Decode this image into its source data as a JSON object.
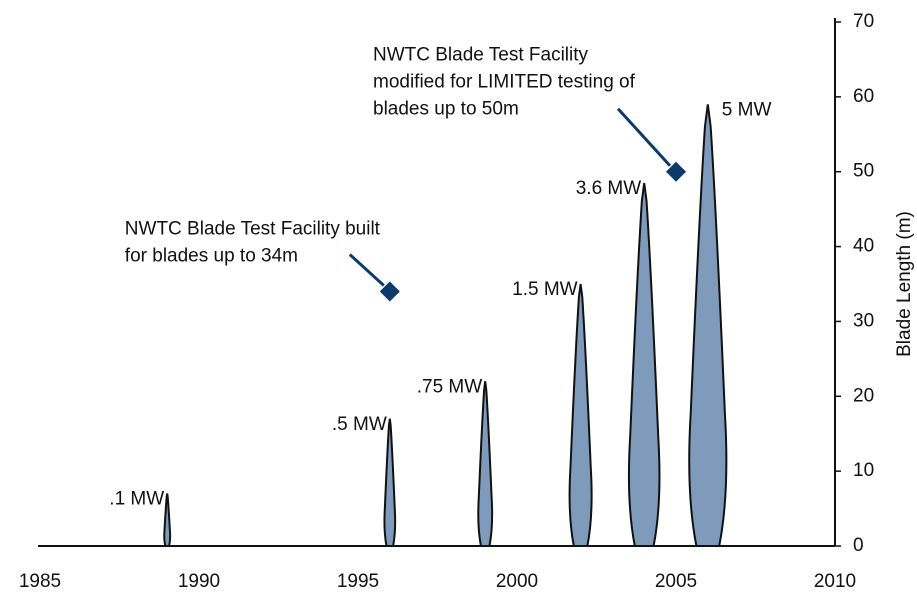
{
  "chart_data": {
    "type": "blade",
    "y_label": "Blade Length (m)",
    "x": [
      1989,
      1996,
      1999,
      2002,
      2004,
      2006
    ],
    "values": [
      7,
      17,
      22,
      35,
      48.5,
      59
    ],
    "labels": [
      ".1 MW",
      ".5 MW",
      ".75 MW",
      "1.5 MW",
      "3.6 MW",
      "5 MW"
    ],
    "color": "#7f9bbb",
    "annotations": [
      {
        "text": [
          "NWTC Blade Test Facility built",
          "for blades up to 34m"
        ],
        "x": 1996,
        "y": 34
      },
      {
        "text": [
          "NWTC Blade Test Facility",
          "modified for LIMITED testing of",
          "blades up to 50m"
        ],
        "x": 2005,
        "y": 50
      }
    ],
    "marker_color": "#0b3a6b",
    "xlim": [
      1985,
      2010
    ],
    "xticks": [
      1985,
      1990,
      1995,
      2000,
      2005,
      2010
    ],
    "ylim": [
      0,
      70
    ],
    "yticks": [
      0,
      10,
      20,
      30,
      40,
      50,
      60,
      70
    ]
  }
}
